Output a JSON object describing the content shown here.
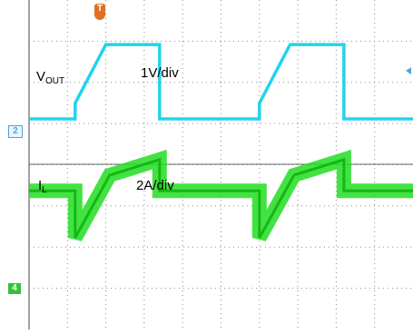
{
  "chart_data": {
    "type": "line",
    "title": "",
    "grid": true,
    "divisions": {
      "x": 10,
      "y": 8
    },
    "channels": [
      {
        "id": "2",
        "label_main": "V",
        "label_sub": "OUT",
        "scale": "1V/div",
        "color": "#22d3ee",
        "units": "div",
        "ground_div": 0,
        "x": [
          0,
          1.2,
          1.2,
          2.0,
          3.4,
          3.4,
          6.0,
          6.0,
          6.8,
          8.2,
          8.2,
          10
        ],
        "y": [
          0,
          0,
          0.4,
          1.9,
          1.9,
          0,
          0,
          0.4,
          1.9,
          1.9,
          0,
          0
        ]
      },
      {
        "id": "4",
        "label_main": "I",
        "label_sub": "L",
        "scale": "2A/div",
        "color": "#22dd22",
        "units": "div",
        "ground_div": 0,
        "x": [
          0,
          1.2,
          1.2,
          2.1,
          3.4,
          3.4,
          6.0,
          6.0,
          6.9,
          8.2,
          8.2,
          10
        ],
        "y": [
          1.2,
          1.2,
          0,
          1.6,
          2.0,
          1.2,
          1.2,
          0,
          1.6,
          2.0,
          1.2,
          1.2
        ]
      }
    ]
  },
  "markers": {
    "trigger": "T",
    "ch2": "2",
    "ch4": "4"
  },
  "colors": {
    "grid": "#8a8a8a",
    "trigger": "#e07020",
    "v_marker": "#4ea4d8",
    "i_marker": "#36c236"
  }
}
